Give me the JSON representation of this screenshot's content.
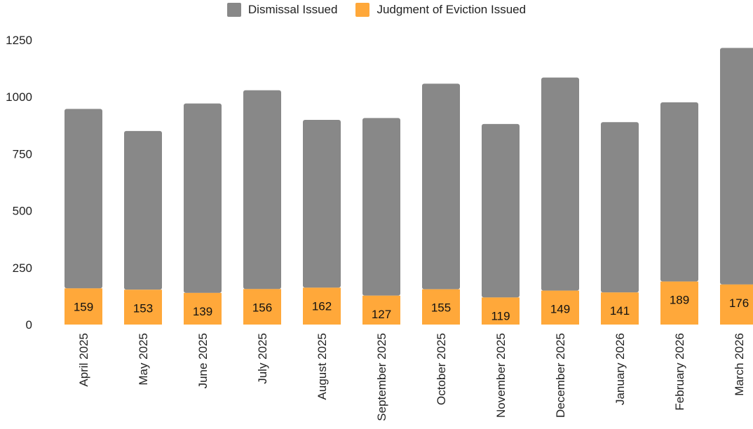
{
  "chart_data": {
    "type": "bar",
    "stacked": true,
    "categories": [
      "April 2025",
      "May 2025",
      "June 2025",
      "July 2025",
      "August 2025",
      "September 2025",
      "October 2025",
      "November 2025",
      "December 2025",
      "January 2026",
      "February 2026",
      "March 2026"
    ],
    "series": [
      {
        "name": "Judgment of Eviction Issued",
        "color": "#FFA83A",
        "values": [
          159,
          153,
          139,
          156,
          162,
          127,
          155,
          119,
          149,
          141,
          189,
          176
        ]
      },
      {
        "name": "Dismissal Issued",
        "color": "#888888",
        "values": [
          788,
          697,
          832,
          873,
          737,
          780,
          903,
          762,
          936,
          748,
          787,
          1039
        ]
      }
    ],
    "data_labels_series": "Judgment of Eviction Issued",
    "y_ticks": [
      0,
      250,
      500,
      750,
      1000,
      1250
    ],
    "ylim": [
      0,
      1250
    ],
    "grid": false,
    "legend_position": "top-center",
    "xlabel": "",
    "ylabel": "",
    "title": ""
  }
}
